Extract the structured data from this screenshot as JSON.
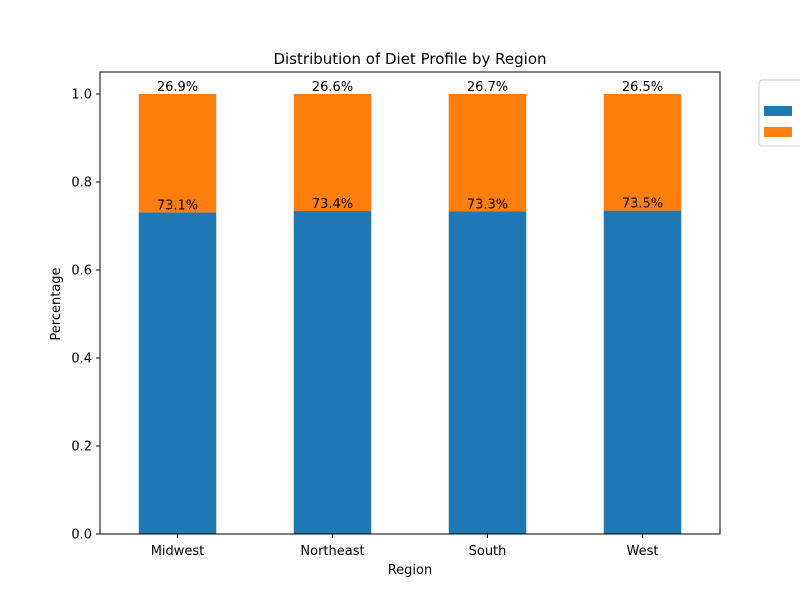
{
  "chart_data": {
    "type": "bar",
    "stacked": true,
    "title": "Distribution of Diet Profile by Region",
    "xlabel": "Region",
    "ylabel": "Percentage",
    "categories": [
      "Midwest",
      "Northeast",
      "South",
      "West"
    ],
    "ylim": [
      0,
      1.05
    ],
    "yticks": [
      0.0,
      0.2,
      0.4,
      0.6,
      0.8,
      1.0
    ],
    "ytick_labels": [
      "0.0",
      "0.2",
      "0.4",
      "0.6",
      "0.8",
      "1.0"
    ],
    "grid": false,
    "legend": {
      "placement": "outside-top-right",
      "title": ""
    },
    "series": [
      {
        "name": "",
        "color": "#1f77b4",
        "values": [
          0.731,
          0.734,
          0.733,
          0.735
        ],
        "labels": [
          "73.1%",
          "73.4%",
          "73.3%",
          "73.5%"
        ]
      },
      {
        "name": "",
        "color": "#ff7f0e",
        "values": [
          0.269,
          0.266,
          0.267,
          0.265
        ],
        "labels": [
          "26.9%",
          "26.6%",
          "26.7%",
          "26.5%"
        ]
      }
    ]
  }
}
